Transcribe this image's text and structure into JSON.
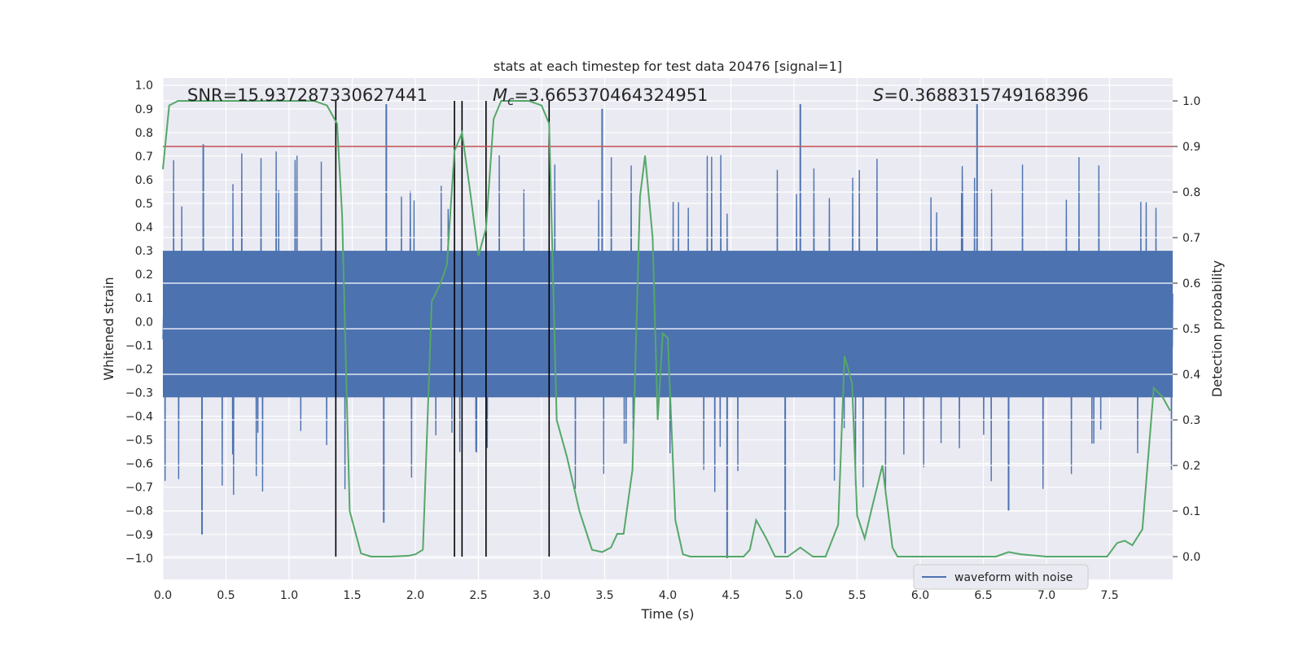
{
  "chart_data": {
    "type": "line",
    "title": "stats at each timestep for test data 20476 [signal=1]",
    "xlabel": "Time (s)",
    "ylabel_left": "Whitened strain",
    "ylabel_right": "Detection probability",
    "xlim": [
      0.0,
      8.0
    ],
    "ylim_left": [
      -1.09,
      1.03
    ],
    "ylim_right": [
      -0.05,
      1.05
    ],
    "x_ticks": [
      0.0,
      0.5,
      1.0,
      1.5,
      2.0,
      2.5,
      3.0,
      3.5,
      4.0,
      4.5,
      5.0,
      5.5,
      6.0,
      6.5,
      7.0,
      7.5
    ],
    "x_tick_labels": [
      "0.0",
      "0.5",
      "1.0",
      "1.5",
      "2.0",
      "2.5",
      "3.0",
      "3.5",
      "4.0",
      "4.5",
      "5.0",
      "5.5",
      "6.0",
      "6.5",
      "7.0",
      "7.5"
    ],
    "y_left_ticks": [
      1.0,
      0.9,
      0.8,
      0.7,
      0.6,
      0.5,
      0.4,
      0.3,
      0.2,
      0.1,
      0.0,
      -0.1,
      -0.2,
      -0.3,
      -0.4,
      -0.5,
      -0.6,
      -0.7,
      -0.8,
      -0.9,
      -1.0
    ],
    "y_left_tick_labels": [
      "1.0",
      "0.9",
      "0.8",
      "0.7",
      "0.6",
      "0.5",
      "0.4",
      "0.3",
      "0.2",
      "0.1",
      "0.0",
      "−0.1",
      "−0.2",
      "−0.3",
      "−0.4",
      "−0.5",
      "−0.6",
      "−0.7",
      "−0.8",
      "−0.9",
      "−1.0"
    ],
    "y_right_ticks": [
      1.0,
      0.9,
      0.8,
      0.7,
      0.6,
      0.5,
      0.4,
      0.3,
      0.2,
      0.1,
      0.0
    ],
    "y_right_tick_labels": [
      "1.0",
      "0.9",
      "0.8",
      "0.7",
      "0.6",
      "0.5",
      "0.4",
      "0.3",
      "0.2",
      "0.1",
      "0.0"
    ],
    "annotations": {
      "snr": "SNR=15.937287330627441",
      "mc": "ℳc=3.665370464324951",
      "s": "S=0.3688315749168396"
    },
    "annotation_parts": {
      "mc_symbol": "M",
      "mc_sub": "c",
      "mc_value": "=3.665370464324951",
      "s_symbol": "S",
      "s_value": "=0.3688315749168396"
    },
    "legend": {
      "entries": [
        "waveform with noise"
      ],
      "location": "lower-right"
    },
    "threshold_line": {
      "value": 0.9,
      "axis": "right",
      "color": "#c44e52"
    },
    "vertical_markers": [
      1.37,
      2.31,
      2.37,
      2.56,
      3.06
    ],
    "series": [
      {
        "name": "waveform with noise",
        "axis": "left",
        "color": "#4c72b0",
        "kind": "noise",
        "typical_amplitude": 0.45,
        "peak_amplitude": 0.92,
        "spikes": [
          {
            "x": 1.77,
            "y": 0.92
          },
          {
            "x": 3.48,
            "y": 0.9
          },
          {
            "x": 5.05,
            "y": 0.92
          },
          {
            "x": 6.45,
            "y": 0.92
          },
          {
            "x": 0.32,
            "y": 0.75
          },
          {
            "x": 4.47,
            "y": -1.0
          },
          {
            "x": 4.93,
            "y": -0.98
          },
          {
            "x": 0.31,
            "y": -0.9
          },
          {
            "x": 1.75,
            "y": -0.85
          },
          {
            "x": 6.7,
            "y": -0.8
          }
        ]
      },
      {
        "name": "Detection probability",
        "axis": "right",
        "color": "#55a868",
        "x": [
          0.0,
          0.05,
          0.12,
          0.3,
          0.5,
          0.8,
          1.0,
          1.2,
          1.3,
          1.38,
          1.42,
          1.48,
          1.57,
          1.65,
          1.8,
          1.95,
          2.0,
          2.06,
          2.13,
          2.2,
          2.25,
          2.31,
          2.37,
          2.43,
          2.5,
          2.56,
          2.62,
          2.68,
          2.75,
          2.9,
          3.0,
          3.06,
          3.12,
          3.2,
          3.3,
          3.4,
          3.48,
          3.55,
          3.6,
          3.65,
          3.72,
          3.78,
          3.82,
          3.88,
          3.92,
          3.96,
          4.0,
          4.06,
          4.12,
          4.18,
          4.3,
          4.4,
          4.5,
          4.6,
          4.65,
          4.7,
          4.78,
          4.85,
          4.9,
          4.95,
          5.05,
          5.15,
          5.25,
          5.35,
          5.4,
          5.46,
          5.5,
          5.56,
          5.62,
          5.7,
          5.78,
          5.82,
          5.88,
          6.0,
          6.3,
          6.6,
          6.7,
          6.8,
          7.0,
          7.2,
          7.4,
          7.48,
          7.56,
          7.62,
          7.68,
          7.76,
          7.85,
          7.92,
          7.98
        ],
        "values": [
          0.85,
          0.99,
          1.0,
          1.0,
          1.0,
          1.0,
          1.0,
          1.0,
          0.99,
          0.95,
          0.75,
          0.1,
          0.007,
          0.0,
          0.0,
          0.002,
          0.005,
          0.015,
          0.56,
          0.6,
          0.64,
          0.89,
          0.93,
          0.81,
          0.66,
          0.72,
          0.96,
          1.0,
          1.0,
          1.0,
          0.99,
          0.95,
          0.3,
          0.22,
          0.1,
          0.015,
          0.01,
          0.02,
          0.05,
          0.05,
          0.19,
          0.79,
          0.88,
          0.7,
          0.3,
          0.49,
          0.48,
          0.08,
          0.005,
          0.0,
          0.0,
          0.0,
          0.0,
          0.0,
          0.015,
          0.08,
          0.04,
          0.0,
          0.0,
          0.0,
          0.02,
          0.0,
          0.0,
          0.07,
          0.44,
          0.38,
          0.09,
          0.04,
          0.11,
          0.2,
          0.02,
          0.0,
          0.0,
          0.0,
          0.0,
          0.0,
          0.01,
          0.005,
          0.0,
          0.0,
          0.0,
          0.0,
          0.03,
          0.035,
          0.025,
          0.06,
          0.37,
          0.35,
          0.32
        ]
      }
    ]
  }
}
